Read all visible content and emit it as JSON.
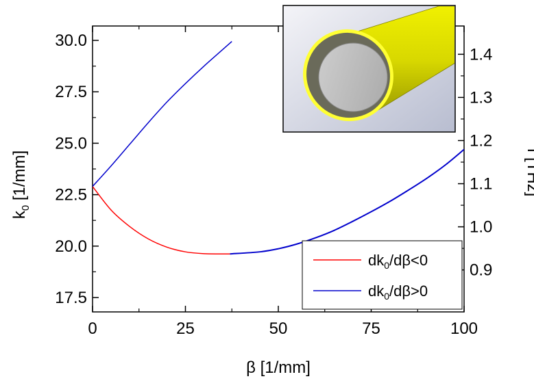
{
  "chart_data": {
    "type": "line",
    "xlabel": "β [1/mm]",
    "ylabel": {
      "base": "k",
      "sub": "0",
      "rest": " [1/mm]"
    },
    "y2label": "f [THz]",
    "xlim": [
      0,
      100
    ],
    "ylim": [
      16.8,
      30.7
    ],
    "y2lim": [
      0.8027,
      1.4656
    ],
    "x_ticks": [
      "0",
      "25",
      "50",
      "75",
      "100"
    ],
    "y_ticks": [
      "17.5",
      "20.0",
      "22.5",
      "25.0",
      "27.5",
      "30.0"
    ],
    "y2_ticks": [
      "0.9",
      "1.0",
      "1.1",
      "1.2",
      "1.3",
      "1.4"
    ],
    "grid": false,
    "legend_position": "bottom-right",
    "series": [
      {
        "name": {
          "base": "dk",
          "sub": "0",
          "rest": "/dβ<0"
        },
        "color": "#ff0000",
        "x": [
          0,
          5,
          10,
          15,
          20,
          25,
          30,
          35,
          37
        ],
        "y": [
          22.9,
          21.75,
          20.95,
          20.35,
          19.95,
          19.72,
          19.63,
          19.62,
          19.62
        ]
      },
      {
        "name": {
          "base": "dk",
          "sub": "0",
          "rest": "/dβ>0"
        },
        "color": "#0000cc",
        "x": [
          37,
          45,
          50,
          55,
          60,
          65,
          70,
          75,
          80,
          85,
          90,
          95,
          100
        ],
        "y": [
          19.62,
          19.72,
          19.87,
          20.1,
          20.4,
          20.76,
          21.2,
          21.67,
          22.17,
          22.72,
          23.3,
          23.95,
          24.7
        ]
      },
      {
        "name": "",
        "color": "#0000cc",
        "x": [
          0,
          5,
          10,
          15,
          20,
          25,
          30,
          35,
          37.5
        ],
        "y": [
          22.9,
          23.9,
          24.95,
          26.0,
          27.0,
          27.9,
          28.75,
          29.55,
          29.95
        ]
      }
    ]
  },
  "inset": {
    "outer_color": "#e0e000",
    "ring_color": "#ffff33",
    "core_color": "#c0c0c0",
    "background": "#d8dce8"
  }
}
